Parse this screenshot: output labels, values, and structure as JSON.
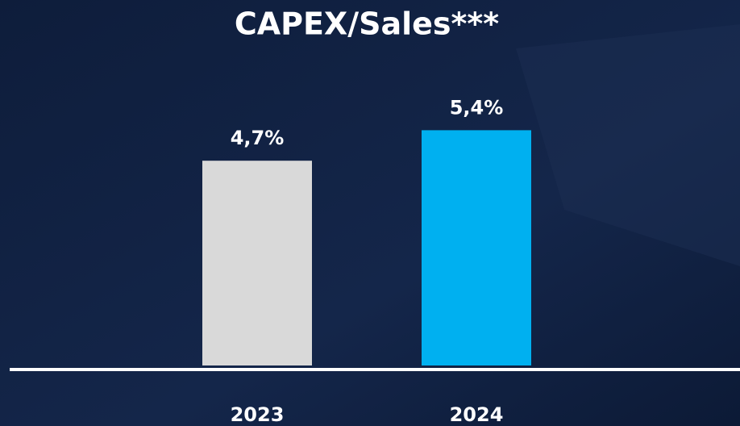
{
  "chart_data": {
    "type": "bar",
    "title": "CAPEX/Sales***",
    "categories": [
      "2023",
      "2024"
    ],
    "values": [
      4.7,
      5.4
    ],
    "value_labels": [
      "4,7%",
      "5,4%"
    ],
    "colors": [
      "#d9d9d9",
      "#00b0f0"
    ],
    "ylim": [
      0,
      6
    ]
  }
}
